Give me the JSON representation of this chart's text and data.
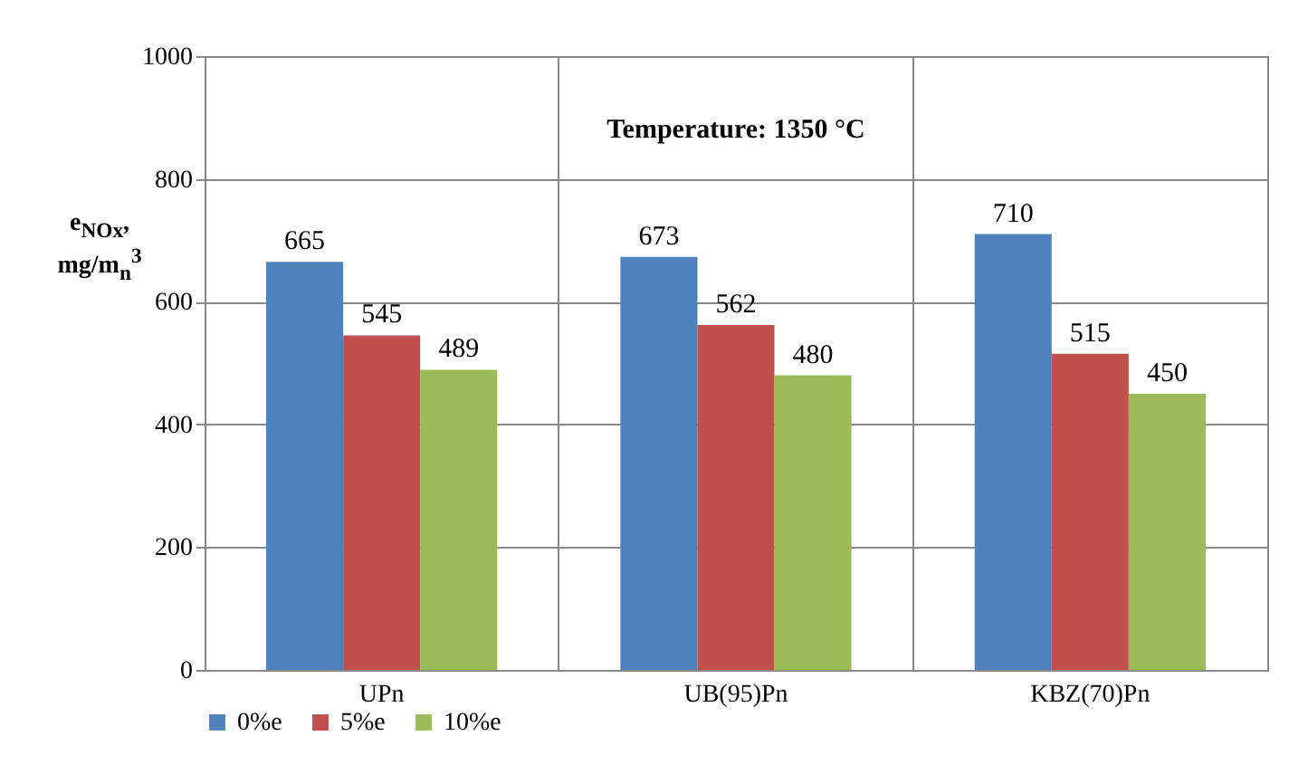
{
  "chart_data": {
    "type": "bar",
    "categories": [
      "UPn",
      "UB(95)Pn",
      "KBZ(70)Pn"
    ],
    "series": [
      {
        "name": "0%e",
        "color": "#4f81bd",
        "values": [
          665,
          673,
          710
        ]
      },
      {
        "name": "5%e",
        "color": "#c0504d",
        "values": [
          545,
          562,
          515
        ]
      },
      {
        "name": "10%e",
        "color": "#9bbb59",
        "values": [
          489,
          480,
          450
        ]
      }
    ],
    "ylabel": "e$_{NOx}$, mg/m$_{n}$$^{3}$",
    "annotations": [
      "Temperature: 1350 °C"
    ],
    "ylim": [
      0,
      1000
    ],
    "yticks": [
      0,
      200,
      400,
      600,
      800,
      1000
    ],
    "grid": true,
    "legend": "bottom",
    "data_labels": true
  }
}
